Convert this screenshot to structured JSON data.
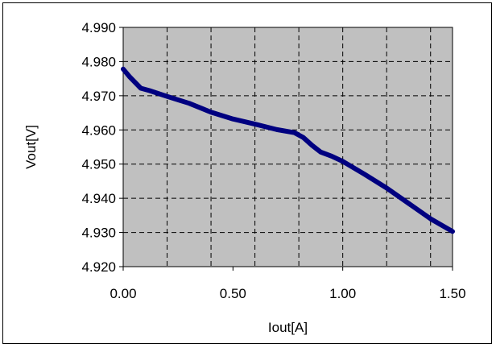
{
  "chart_data": {
    "type": "line",
    "xlabel": "Iout[A]",
    "ylabel": "Vout[V]",
    "xlim": [
      0,
      1.5
    ],
    "ylim": [
      4.92,
      4.99
    ],
    "x_ticks": [
      "0.00",
      "0.50",
      "1.00",
      "1.50"
    ],
    "y_ticks": [
      "4.920",
      "4.930",
      "4.940",
      "4.950",
      "4.960",
      "4.970",
      "4.980",
      "4.990"
    ],
    "grid": true,
    "legend": "none",
    "colors": {
      "plot_bg": "#c0c0c0",
      "line": "#000080",
      "grid": "#000000"
    },
    "series": [
      {
        "x": [
          0.0,
          0.03,
          0.08,
          0.12,
          0.2,
          0.3,
          0.4,
          0.5,
          0.6,
          0.7,
          0.78,
          0.82,
          0.86,
          0.9,
          0.95,
          1.0,
          1.1,
          1.2,
          1.3,
          1.4,
          1.5
        ],
        "y": [
          4.9778,
          4.9755,
          4.9722,
          4.9715,
          4.9698,
          4.9678,
          4.9652,
          4.9632,
          4.9617,
          4.9601,
          4.9592,
          4.9578,
          4.9555,
          4.9535,
          4.9523,
          4.9508,
          4.947,
          4.943,
          4.9385,
          4.934,
          4.9303
        ]
      }
    ]
  }
}
